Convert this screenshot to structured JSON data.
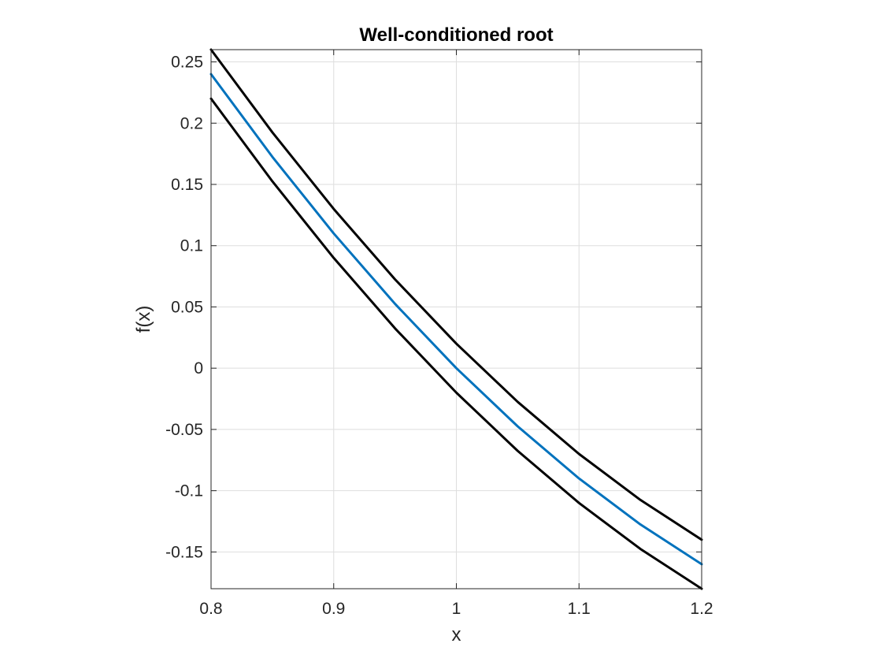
{
  "chart_data": {
    "type": "line",
    "title": "Well-conditioned root",
    "xlabel": "x",
    "ylabel": "f(x)",
    "xlim": [
      0.8,
      1.2
    ],
    "ylim": [
      -0.18,
      0.26
    ],
    "xticks": [
      0.8,
      0.9,
      1.0,
      1.1,
      1.2
    ],
    "xtick_labels": [
      "0.8",
      "0.9",
      "1",
      "1.1",
      "1.2"
    ],
    "yticks": [
      -0.15,
      -0.1,
      -0.05,
      0,
      0.05,
      0.1,
      0.15,
      0.2,
      0.25
    ],
    "ytick_labels": [
      "-0.15",
      "-0.1",
      "-0.05",
      "0",
      "0.05",
      "0.1",
      "0.15",
      "0.2",
      "0.25"
    ],
    "grid": true,
    "series": [
      {
        "color": "#000000",
        "x": [
          0.8,
          0.85,
          0.9,
          0.95,
          1.0,
          1.05,
          1.1,
          1.15,
          1.2
        ],
        "y": [
          0.26,
          0.1925,
          0.13,
          0.0725,
          0.02,
          -0.0275,
          -0.07,
          -0.1075,
          -0.14
        ]
      },
      {
        "color": "#0072BD",
        "x": [
          0.8,
          0.85,
          0.9,
          0.95,
          1.0,
          1.05,
          1.1,
          1.15,
          1.2
        ],
        "y": [
          0.24,
          0.1725,
          0.11,
          0.0525,
          0.0,
          -0.0475,
          -0.09,
          -0.1275,
          -0.16
        ]
      },
      {
        "color": "#000000",
        "x": [
          0.8,
          0.85,
          0.9,
          0.95,
          1.0,
          1.05,
          1.1,
          1.15,
          1.2
        ],
        "y": [
          0.22,
          0.1525,
          0.09,
          0.0325,
          -0.02,
          -0.0675,
          -0.11,
          -0.1475,
          -0.18
        ]
      }
    ]
  }
}
